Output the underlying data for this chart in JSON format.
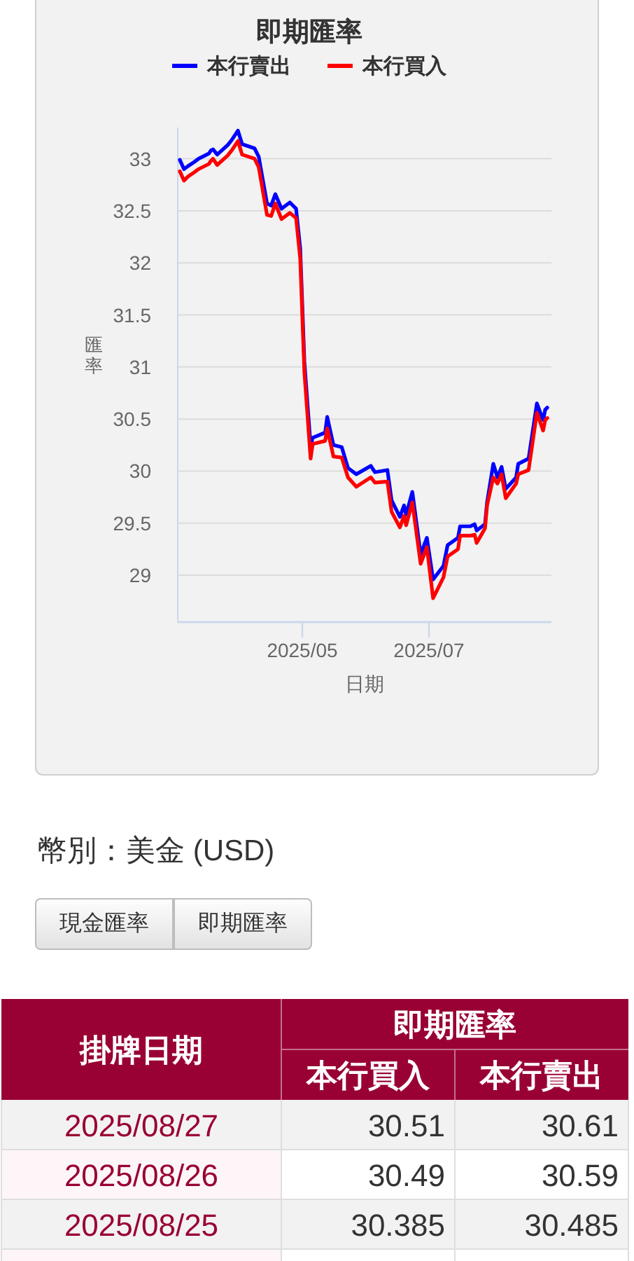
{
  "chart_data": [
    {
      "type": "line",
      "title": "即期匯率",
      "xlabel": "日期",
      "ylabel": "匯率",
      "x": [
        "2025-03-03",
        "2025-03-05",
        "2025-03-07",
        "2025-03-10",
        "2025-03-12",
        "2025-03-17",
        "2025-03-18",
        "2025-03-19",
        "2025-03-21",
        "2025-03-26",
        "2025-03-28",
        "2025-03-31",
        "2025-04-02",
        "2025-04-08",
        "2025-04-10",
        "2025-04-14",
        "2025-04-16",
        "2025-04-18",
        "2025-04-21",
        "2025-04-25",
        "2025-04-28",
        "2025-04-30",
        "2025-05-02",
        "2025-05-05",
        "2025-05-06",
        "2025-05-12",
        "2025-05-13",
        "2025-05-16",
        "2025-05-20",
        "2025-05-23",
        "2025-05-27",
        "2025-06-03",
        "2025-06-05",
        "2025-06-11",
        "2025-06-13",
        "2025-06-17",
        "2025-06-19",
        "2025-06-20",
        "2025-06-23",
        "2025-06-27",
        "2025-06-30",
        "2025-07-03",
        "2025-07-08",
        "2025-07-10",
        "2025-07-15",
        "2025-07-16",
        "2025-07-21",
        "2025-07-23",
        "2025-07-24",
        "2025-07-28",
        "2025-07-29",
        "2025-08-01",
        "2025-08-03",
        "2025-08-05",
        "2025-08-07",
        "2025-08-12",
        "2025-08-13",
        "2025-08-18",
        "2025-08-22",
        "2025-08-25",
        "2025-08-26",
        "2025-08-27"
      ],
      "series": [
        {
          "name": "本行賣出",
          "color": "#0000ff",
          "values": [
            32.99,
            32.9,
            32.93,
            32.97,
            33.0,
            33.05,
            33.08,
            33.09,
            33.04,
            33.13,
            33.18,
            33.27,
            33.14,
            33.1,
            33.02,
            32.57,
            32.55,
            32.66,
            32.52,
            32.58,
            32.52,
            32.14,
            31.05,
            30.24,
            30.32,
            30.37,
            30.52,
            30.25,
            30.23,
            30.03,
            29.97,
            30.05,
            29.99,
            30.01,
            29.72,
            29.56,
            29.67,
            29.58,
            29.8,
            29.2,
            29.36,
            28.96,
            29.09,
            29.29,
            29.36,
            29.47,
            29.47,
            29.49,
            29.43,
            29.49,
            29.7,
            30.07,
            29.94,
            30.04,
            29.83,
            29.94,
            30.07,
            30.12,
            30.65,
            30.49,
            30.59,
            30.61
          ]
        },
        {
          "name": "本行買入",
          "color": "#ff0000",
          "values": [
            32.88,
            32.79,
            32.83,
            32.87,
            32.9,
            32.95,
            32.98,
            33.0,
            32.94,
            33.03,
            33.08,
            33.17,
            33.04,
            33.0,
            32.92,
            32.46,
            32.45,
            32.57,
            32.42,
            32.48,
            32.43,
            32.04,
            30.95,
            30.12,
            30.26,
            30.29,
            30.41,
            30.14,
            30.13,
            29.94,
            29.85,
            29.94,
            29.89,
            29.9,
            29.61,
            29.46,
            29.57,
            29.48,
            29.7,
            29.11,
            29.27,
            28.78,
            28.98,
            29.18,
            29.25,
            29.38,
            29.38,
            29.39,
            29.31,
            29.45,
            29.67,
            29.94,
            29.88,
            29.97,
            29.74,
            29.88,
            29.97,
            30.01,
            30.56,
            30.39,
            30.49,
            30.51
          ]
        }
      ],
      "xlim": [
        "2025-03-02",
        "2025-08-29"
      ],
      "xticks": [
        {
          "value": "2025-05-01",
          "label": "2025/05"
        },
        {
          "value": "2025-07-01",
          "label": "2025/07"
        }
      ],
      "ylim": [
        28.55,
        33.3
      ],
      "yticks": [
        29,
        29.5,
        30,
        30.5,
        31,
        31.5,
        32,
        32.5,
        33
      ],
      "grid": "y",
      "legend": "top"
    },
    {
      "type": "other",
      "title": "幣別：美金 (USD)",
      "annotations": [
        "現金匯率",
        "即期匯率"
      ],
      "xlabel": "掛牌日期",
      "legend_title": "即期匯率",
      "categories": [
        "2025/08/27",
        "2025/08/26",
        "2025/08/25"
      ],
      "series": [
        {
          "name": "本行買入",
          "values": [
            30.51,
            30.49,
            30.385
          ]
        },
        {
          "name": "本行賣出",
          "values": [
            30.61,
            30.59,
            30.485
          ]
        }
      ],
      "data_labels": true
    }
  ]
}
